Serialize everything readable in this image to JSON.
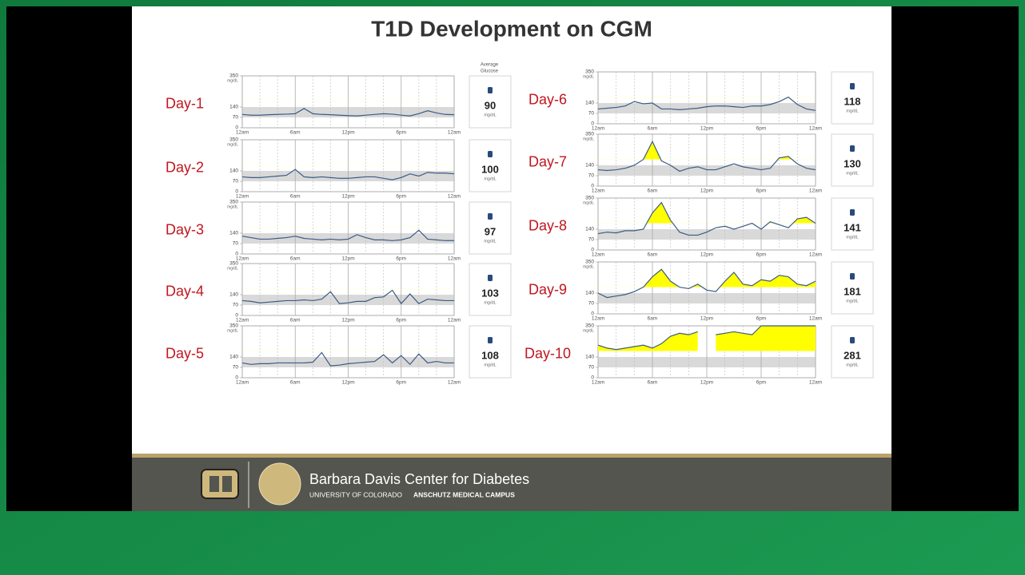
{
  "title": "T1D Development on CGM",
  "average_header": [
    "Average",
    "Glucose"
  ],
  "footer": {
    "center": "Barbara Davis Center for Diabetes",
    "sub_plain": "UNIVERSITY OF COLORADO",
    "sub_bold": "ANSCHUTZ MEDICAL CAMPUS"
  },
  "chart_data": [
    {
      "type": "line",
      "label": "Day-1",
      "x": [
        0,
        1,
        2,
        3,
        4,
        5,
        6,
        7,
        8,
        9,
        10,
        11,
        12,
        13,
        14,
        15,
        16,
        17,
        18,
        19,
        20,
        21,
        22,
        23,
        24
      ],
      "values": [
        90,
        85,
        85,
        88,
        90,
        92,
        95,
        130,
        95,
        90,
        88,
        85,
        82,
        80,
        85,
        90,
        95,
        92,
        85,
        80,
        95,
        115,
        100,
        90,
        88
      ],
      "color": "#3b5b85",
      "xlim": [
        0,
        24
      ],
      "xticks": [
        {
          "value": 0,
          "label": "12am"
        },
        {
          "value": 6,
          "label": "6am"
        },
        {
          "value": 12,
          "label": "12pm"
        },
        {
          "value": 18,
          "label": "6pm"
        },
        {
          "value": 24,
          "label": "12am"
        }
      ],
      "ylim": [
        0,
        350
      ],
      "yticks": [
        0,
        70,
        140,
        350
      ],
      "y_unit": "mg/dL",
      "target_range": [
        70,
        140
      ],
      "high_threshold": 180,
      "high_color": "#ffff00",
      "average": 90,
      "average_unit": "mg/dL"
    },
    {
      "type": "line",
      "label": "Day-2",
      "x": [
        0,
        1,
        2,
        3,
        4,
        5,
        6,
        7,
        8,
        9,
        10,
        11,
        12,
        13,
        14,
        15,
        16,
        17,
        18,
        19,
        20,
        21,
        22,
        23,
        24
      ],
      "values": [
        100,
        95,
        95,
        100,
        105,
        110,
        150,
        100,
        95,
        100,
        95,
        90,
        90,
        95,
        100,
        100,
        90,
        80,
        95,
        120,
        105,
        130,
        125,
        125,
        120
      ],
      "color": "#3b5b85",
      "xlim": [
        0,
        24
      ],
      "xticks": [
        {
          "value": 0,
          "label": "12am"
        },
        {
          "value": 6,
          "label": "6am"
        },
        {
          "value": 12,
          "label": "12pm"
        },
        {
          "value": 18,
          "label": "6pm"
        },
        {
          "value": 24,
          "label": "12am"
        }
      ],
      "ylim": [
        0,
        350
      ],
      "yticks": [
        0,
        70,
        140,
        350
      ],
      "y_unit": "mg/dL",
      "target_range": [
        70,
        140
      ],
      "high_threshold": 180,
      "high_color": "#ffff00",
      "average": 100,
      "average_unit": "mg/dL"
    },
    {
      "type": "line",
      "label": "Day-3",
      "x": [
        0,
        1,
        2,
        3,
        4,
        5,
        6,
        7,
        8,
        9,
        10,
        11,
        12,
        13,
        14,
        15,
        16,
        17,
        18,
        19,
        20,
        21,
        22,
        23,
        24
      ],
      "values": [
        120,
        110,
        100,
        100,
        105,
        110,
        120,
        105,
        100,
        95,
        100,
        95,
        100,
        130,
        110,
        95,
        95,
        90,
        95,
        110,
        160,
        100,
        95,
        90,
        90
      ],
      "color": "#3b5b85",
      "xlim": [
        0,
        24
      ],
      "xticks": [
        {
          "value": 0,
          "label": "12am"
        },
        {
          "value": 6,
          "label": "6am"
        },
        {
          "value": 12,
          "label": "12pm"
        },
        {
          "value": 18,
          "label": "6pm"
        },
        {
          "value": 24,
          "label": "12am"
        }
      ],
      "ylim": [
        0,
        350
      ],
      "yticks": [
        0,
        70,
        140,
        350
      ],
      "y_unit": "mg/dL",
      "target_range": [
        70,
        140
      ],
      "high_threshold": 180,
      "high_color": "#ffff00",
      "average": 97,
      "average_unit": "mg/dL"
    },
    {
      "type": "line",
      "label": "Day-4",
      "x": [
        0,
        1,
        2,
        3,
        4,
        5,
        6,
        7,
        8,
        9,
        10,
        11,
        12,
        13,
        14,
        15,
        16,
        17,
        18,
        19,
        20,
        21,
        22,
        23,
        24
      ],
      "values": [
        100,
        95,
        85,
        90,
        95,
        100,
        100,
        105,
        100,
        110,
        160,
        80,
        85,
        95,
        95,
        120,
        125,
        170,
        80,
        145,
        80,
        110,
        105,
        100,
        100
      ],
      "color": "#3b5b85",
      "xlim": [
        0,
        24
      ],
      "xticks": [
        {
          "value": 0,
          "label": "12am"
        },
        {
          "value": 6,
          "label": "6am"
        },
        {
          "value": 12,
          "label": "12pm"
        },
        {
          "value": 18,
          "label": "6pm"
        },
        {
          "value": 24,
          "label": "12am"
        }
      ],
      "ylim": [
        0,
        350
      ],
      "yticks": [
        0,
        70,
        140,
        350
      ],
      "y_unit": "mg/dL",
      "target_range": [
        70,
        140
      ],
      "high_threshold": 180,
      "high_color": "#ffff00",
      "average": 103,
      "average_unit": "mg/dL"
    },
    {
      "type": "line",
      "label": "Day-5",
      "x": [
        0,
        1,
        2,
        3,
        4,
        5,
        6,
        7,
        8,
        9,
        10,
        11,
        12,
        13,
        14,
        15,
        16,
        17,
        18,
        19,
        20,
        21,
        22,
        23,
        24
      ],
      "values": [
        100,
        90,
        95,
        95,
        100,
        100,
        100,
        100,
        105,
        170,
        80,
        85,
        95,
        100,
        105,
        110,
        155,
        100,
        150,
        90,
        160,
        100,
        110,
        100,
        100
      ],
      "color": "#3b5b85",
      "xlim": [
        0,
        24
      ],
      "xticks": [
        {
          "value": 0,
          "label": "12am"
        },
        {
          "value": 6,
          "label": "6am"
        },
        {
          "value": 12,
          "label": "12pm"
        },
        {
          "value": 18,
          "label": "6pm"
        },
        {
          "value": 24,
          "label": "12am"
        }
      ],
      "ylim": [
        0,
        350
      ],
      "yticks": [
        0,
        70,
        140,
        350
      ],
      "y_unit": "mg/dL",
      "target_range": [
        70,
        140
      ],
      "high_threshold": 180,
      "high_color": "#ffff00",
      "average": 108,
      "average_unit": "mg/dL"
    },
    {
      "type": "line",
      "label": "Day-6",
      "x": [
        0,
        1,
        2,
        3,
        4,
        5,
        6,
        7,
        8,
        9,
        10,
        11,
        12,
        13,
        14,
        15,
        16,
        17,
        18,
        19,
        20,
        21,
        22,
        23,
        24
      ],
      "values": [
        100,
        105,
        110,
        120,
        150,
        135,
        140,
        100,
        100,
        95,
        100,
        105,
        115,
        120,
        120,
        115,
        110,
        120,
        120,
        130,
        150,
        180,
        130,
        100,
        90
      ],
      "color": "#3b5b85",
      "xlim": [
        0,
        24
      ],
      "xticks": [
        {
          "value": 0,
          "label": "12am"
        },
        {
          "value": 6,
          "label": "6am"
        },
        {
          "value": 12,
          "label": "12pm"
        },
        {
          "value": 18,
          "label": "6pm"
        },
        {
          "value": 24,
          "label": "12am"
        }
      ],
      "ylim": [
        0,
        350
      ],
      "yticks": [
        0,
        70,
        140,
        350
      ],
      "y_unit": "mg/dL",
      "target_range": [
        70,
        140
      ],
      "high_threshold": 180,
      "high_color": "#ffff00",
      "average": 118,
      "average_unit": "mg/dL"
    },
    {
      "type": "line",
      "label": "Day-7",
      "x": [
        0,
        1,
        2,
        3,
        4,
        5,
        6,
        7,
        8,
        9,
        10,
        11,
        12,
        13,
        14,
        15,
        16,
        17,
        18,
        19,
        20,
        21,
        22,
        23,
        24
      ],
      "values": [
        110,
        105,
        110,
        120,
        140,
        180,
        300,
        170,
        140,
        100,
        120,
        130,
        110,
        110,
        130,
        150,
        130,
        120,
        110,
        120,
        190,
        200,
        150,
        120,
        110
      ],
      "color": "#3b5b85",
      "xlim": [
        0,
        24
      ],
      "xticks": [
        {
          "value": 0,
          "label": "12am"
        },
        {
          "value": 6,
          "label": "6am"
        },
        {
          "value": 12,
          "label": "12pm"
        },
        {
          "value": 18,
          "label": "6pm"
        },
        {
          "value": 24,
          "label": "12am"
        }
      ],
      "ylim": [
        0,
        350
      ],
      "yticks": [
        0,
        70,
        140,
        350
      ],
      "y_unit": "mg/dL",
      "target_range": [
        70,
        140
      ],
      "high_threshold": 180,
      "high_color": "#ffff00",
      "average": 130,
      "average_unit": "mg/dL"
    },
    {
      "type": "line",
      "label": "Day-8",
      "x": [
        0,
        1,
        2,
        3,
        4,
        5,
        6,
        7,
        8,
        9,
        10,
        11,
        12,
        13,
        14,
        15,
        16,
        17,
        18,
        19,
        20,
        21,
        22,
        23,
        24
      ],
      "values": [
        110,
        120,
        115,
        130,
        130,
        140,
        250,
        320,
        200,
        120,
        100,
        100,
        120,
        150,
        160,
        140,
        160,
        180,
        140,
        190,
        170,
        150,
        210,
        220,
        180
      ],
      "color": "#3b5b85",
      "xlim": [
        0,
        24
      ],
      "xticks": [
        {
          "value": 0,
          "label": "12am"
        },
        {
          "value": 6,
          "label": "6am"
        },
        {
          "value": 12,
          "label": "12pm"
        },
        {
          "value": 18,
          "label": "6pm"
        },
        {
          "value": 24,
          "label": "12am"
        }
      ],
      "ylim": [
        0,
        350
      ],
      "yticks": [
        0,
        70,
        140,
        350
      ],
      "y_unit": "mg/dL",
      "target_range": [
        70,
        140
      ],
      "high_threshold": 180,
      "high_color": "#ffff00",
      "average": 141,
      "average_unit": "mg/dL"
    },
    {
      "type": "line",
      "label": "Day-9",
      "x": [
        0,
        1,
        2,
        3,
        4,
        5,
        6,
        7,
        8,
        9,
        10,
        11,
        12,
        13,
        14,
        15,
        16,
        17,
        18,
        19,
        20,
        21,
        22,
        23,
        24
      ],
      "values": [
        140,
        110,
        120,
        130,
        150,
        180,
        250,
        300,
        220,
        180,
        170,
        200,
        160,
        150,
        220,
        280,
        200,
        190,
        230,
        220,
        260,
        250,
        200,
        190,
        220
      ],
      "color": "#3b5b85",
      "xlim": [
        0,
        24
      ],
      "xticks": [
        {
          "value": 0,
          "label": "12am"
        },
        {
          "value": 6,
          "label": "6am"
        },
        {
          "value": 12,
          "label": "12pm"
        },
        {
          "value": 18,
          "label": "6pm"
        },
        {
          "value": 24,
          "label": "12am"
        }
      ],
      "ylim": [
        0,
        350
      ],
      "yticks": [
        0,
        70,
        140,
        350
      ],
      "y_unit": "mg/dL",
      "target_range": [
        70,
        140
      ],
      "high_threshold": 180,
      "high_color": "#ffff00",
      "average": 181,
      "average_unit": "mg/dL"
    },
    {
      "type": "line",
      "label": "Day-10",
      "x": [
        0,
        1,
        2,
        3,
        4,
        5,
        6,
        7,
        8,
        9,
        10,
        11,
        12,
        13,
        14,
        15,
        16,
        17,
        18,
        19,
        20,
        21,
        22,
        23,
        24
      ],
      "values": [
        220,
        200,
        190,
        200,
        210,
        220,
        200,
        230,
        280,
        300,
        290,
        310,
        null,
        290,
        300,
        310,
        300,
        290,
        350,
        350,
        350,
        350,
        350,
        350,
        350
      ],
      "color": "#3b5b85",
      "xlim": [
        0,
        24
      ],
      "xticks": [
        {
          "value": 0,
          "label": "12am"
        },
        {
          "value": 6,
          "label": "6am"
        },
        {
          "value": 12,
          "label": "12pm"
        },
        {
          "value": 18,
          "label": "6pm"
        },
        {
          "value": 24,
          "label": "12am"
        }
      ],
      "ylim": [
        0,
        350
      ],
      "yticks": [
        0,
        70,
        140,
        350
      ],
      "y_unit": "mg/dL",
      "target_range": [
        70,
        140
      ],
      "high_threshold": 180,
      "high_color": "#ffff00",
      "average": 281,
      "average_unit": "mg/dL"
    }
  ]
}
